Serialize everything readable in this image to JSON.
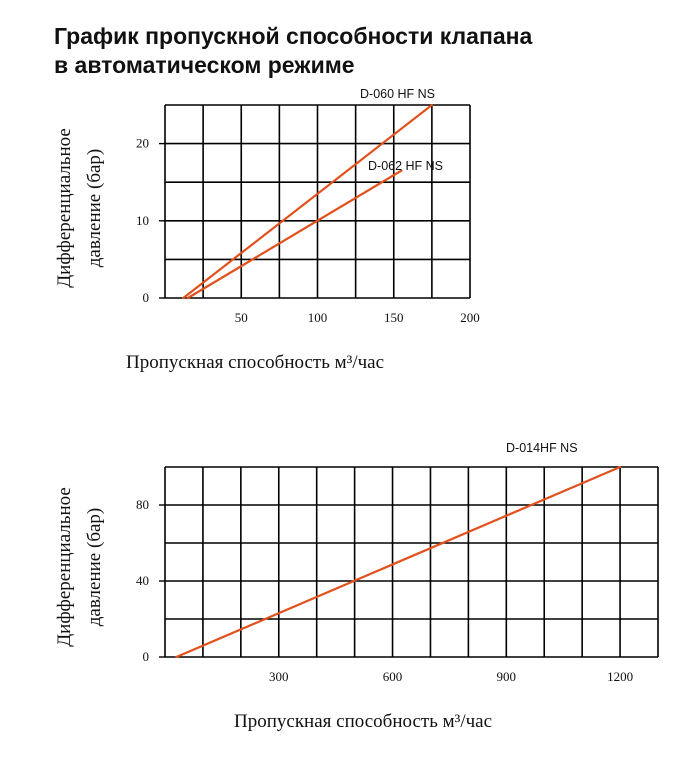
{
  "title": {
    "line1": "График пропускной способности клапана",
    "line2": "в автоматическом режиме"
  },
  "colors": {
    "series": "#e2501c",
    "grid": "#000000"
  },
  "chart_data": [
    {
      "type": "line",
      "ylabel_line1": "Дифференциальное",
      "ylabel_line2": "давление (бар)",
      "xlabel": "Пропускная способность м³/час",
      "xlim": [
        0,
        200
      ],
      "ylim": [
        0,
        25
      ],
      "x_ticks": [
        "50",
        "100",
        "150",
        "200"
      ],
      "x_tick_values": [
        50,
        100,
        150,
        200
      ],
      "y_ticks": [
        "0",
        "10",
        "20"
      ],
      "y_tick_values": [
        0,
        10,
        20
      ],
      "grid": true,
      "series": [
        {
          "name": "D-060 HF NS",
          "x": [
            12,
            175
          ],
          "y": [
            0,
            25
          ]
        },
        {
          "name": "D-062 HF NS",
          "x": [
            15,
            155
          ],
          "y": [
            0,
            16.5
          ]
        }
      ]
    },
    {
      "type": "line",
      "ylabel_line1": "Дифференциальное",
      "ylabel_line2": "давление (бар)",
      "xlabel": "Пропускная способность м³/час",
      "xlim": [
        0,
        1300
      ],
      "ylim": [
        0,
        100
      ],
      "x_ticks": [
        "300",
        "600",
        "900",
        "1200"
      ],
      "x_tick_values": [
        300,
        600,
        900,
        1200
      ],
      "y_ticks": [
        "0",
        "40",
        "80"
      ],
      "y_tick_values": [
        0,
        40,
        80
      ],
      "grid": true,
      "series": [
        {
          "name": "D-014HF NS",
          "x": [
            30,
            1200
          ],
          "y": [
            0,
            100
          ]
        }
      ]
    }
  ]
}
